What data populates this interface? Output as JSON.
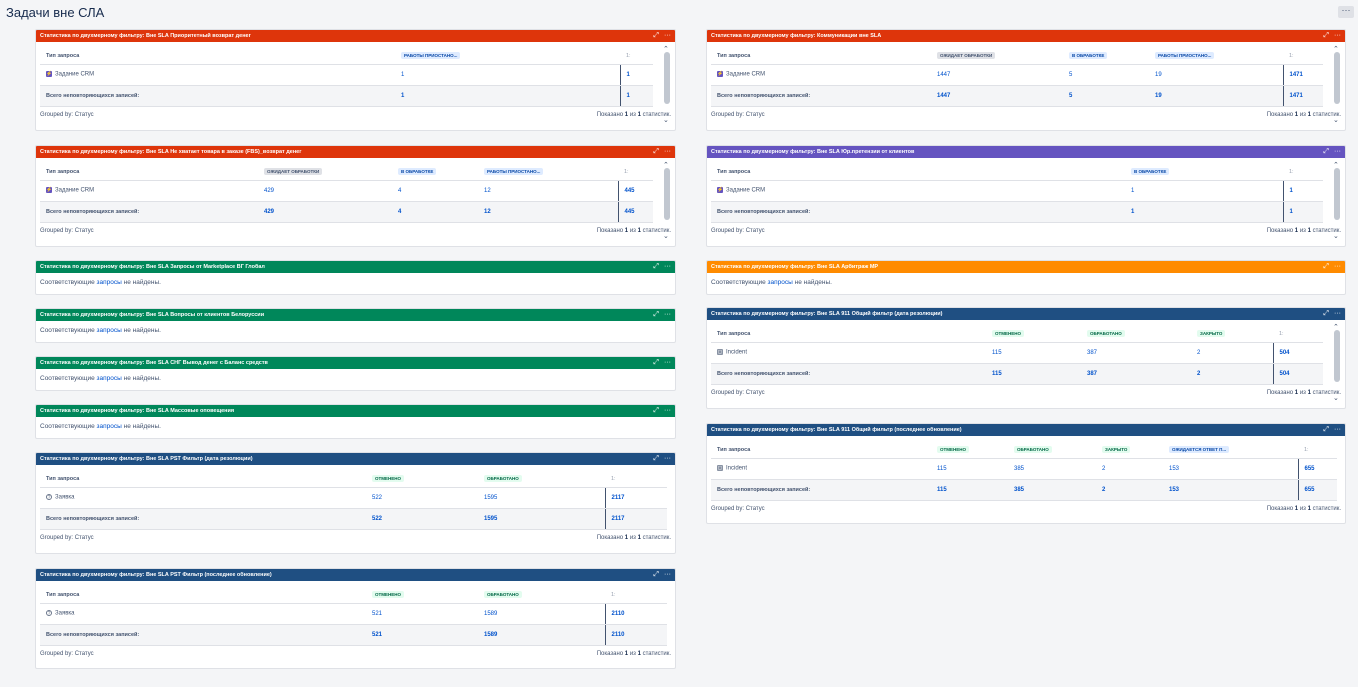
{
  "page": {
    "title": "Задачи вне СЛА",
    "more_label": "···"
  },
  "common": {
    "grouped_by": "Grouped by: Статус",
    "shown_prefix": "Показано",
    "shown_num": "1",
    "shown_mid": "из",
    "shown_total": "1",
    "shown_suffix": "статистик.",
    "type_header": "Тип запроса",
    "total_label": "Всего неповторяющихся записей:",
    "sum_header": "1:",
    "empty_prefix": "Соответствующие",
    "empty_link": "запросы",
    "empty_suffix": "не найдены.",
    "expand_icon": "⤢",
    "menu_icon": "···"
  },
  "gadgets": {
    "g1": {
      "title": "Статистика по двухмерному фильтру: Вне SLA Приоритетный возврат денег",
      "color": "#de350b",
      "headers": [
        "РАБОТЫ ПРИОСТАНО..."
      ],
      "row_type": "Задание CRM",
      "row": [
        "1"
      ],
      "row_sum": "1",
      "totals": [
        "1"
      ],
      "total_sum": "1"
    },
    "g2": {
      "title": "Статистика по двухмерному фильтру: Вне SLA Не хватает товара в заказе (FBS)_возврат денег",
      "color": "#de350b",
      "headers": [
        "ОЖИДАЕТ ОБРАБОТКИ",
        "В ОБРАБОТКЕ",
        "РАБОТЫ ПРИОСТАНО..."
      ],
      "row_type": "Задание CRM",
      "row": [
        "429",
        "4",
        "12"
      ],
      "row_sum": "445",
      "totals": [
        "429",
        "4",
        "12"
      ],
      "total_sum": "445"
    },
    "g3": {
      "title": "Статистика по двухмерному фильтру: Вне SLA Запросы от Marketplace ВГ Глобал",
      "color": "#00875a"
    },
    "g4": {
      "title": "Статистика по двухмерному фильтру: Вне SLA Вопросы от клиентов Белоруссии",
      "color": "#00875a"
    },
    "g5": {
      "title": "Статистика по двухмерному фильтру: Вне SLA СНГ Вывод денег с Баланс средств",
      "color": "#00875a"
    },
    "g6": {
      "title": "Статистика по двухмерному фильтру: Вне SLA Массовые оповещения",
      "color": "#00875a"
    },
    "g7": {
      "title": "Статистика по двухмерному фильтру: Вне SLA PST Фильтр (дата резолюции)",
      "color": "#1f4f82",
      "headers": [
        "ОТМЕНЕНО",
        "ОБРАБОТАНО"
      ],
      "row_type": "Заявка",
      "row": [
        "522",
        "1595"
      ],
      "row_sum": "2117",
      "totals": [
        "522",
        "1595"
      ],
      "total_sum": "2117"
    },
    "g8": {
      "title": "Статистика по двухмерному фильтру: Вне SLA PST Фильтр (последнее обновление)",
      "color": "#1f4f82",
      "headers": [
        "ОТМЕНЕНО",
        "ОБРАБОТАНО"
      ],
      "row_type": "Заявка",
      "row": [
        "521",
        "1589"
      ],
      "row_sum": "2110",
      "totals": [
        "521",
        "1589"
      ],
      "total_sum": "2110"
    },
    "r1": {
      "title": "Статистика по двухмерному фильтру: Коммуникации вне SLA",
      "color": "#de350b",
      "headers": [
        "ОЖИДАЕТ ОБРАБОТКИ",
        "В ОБРАБОТКЕ",
        "РАБОТЫ ПРИОСТАНО..."
      ],
      "row_type": "Задание CRM",
      "row": [
        "1447",
        "5",
        "19"
      ],
      "row_sum": "1471",
      "totals": [
        "1447",
        "5",
        "19"
      ],
      "total_sum": "1471"
    },
    "r2": {
      "title": "Статистика по двухмерному фильтру: Вне SLA Юр.претензии от клиентов",
      "color": "#6554c0",
      "headers": [
        "В ОБРАБОТКЕ"
      ],
      "row_type": "Задание CRM",
      "row": [
        "1"
      ],
      "row_sum": "1",
      "totals": [
        "1"
      ],
      "total_sum": "1"
    },
    "r3": {
      "title": "Статистика по двухмерному фильтру: Вне SLA Арбитраж МР",
      "color": "#ff8b00"
    },
    "r4": {
      "title": "Статистика по двухмерному фильтру: Вне SLA 911 Общий фильтр (дата резолюции)",
      "color": "#1f4f82",
      "headers": [
        "ОТМЕНЕНО",
        "ОБРАБОТАНО",
        "ЗАКРЫТО"
      ],
      "row_type": "Incident",
      "row": [
        "115",
        "387",
        "2"
      ],
      "row_sum": "504",
      "totals": [
        "115",
        "387",
        "2"
      ],
      "total_sum": "504"
    },
    "r5": {
      "title": "Статистика по двухмерному фильтру: Вне SLA 911 Общий фильтр (последнее обновление)",
      "color": "#1f4f82",
      "headers": [
        "ОТМЕНЕНО",
        "ОБРАБОТАНО",
        "ЗАКРЫТО",
        "ОЖИДАЕТСЯ ОТВЕТ П..."
      ],
      "row_type": "Incident",
      "row": [
        "115",
        "385",
        "2",
        "153"
      ],
      "row_sum": "655",
      "totals": [
        "115",
        "385",
        "2",
        "153"
      ],
      "total_sum": "655"
    }
  }
}
